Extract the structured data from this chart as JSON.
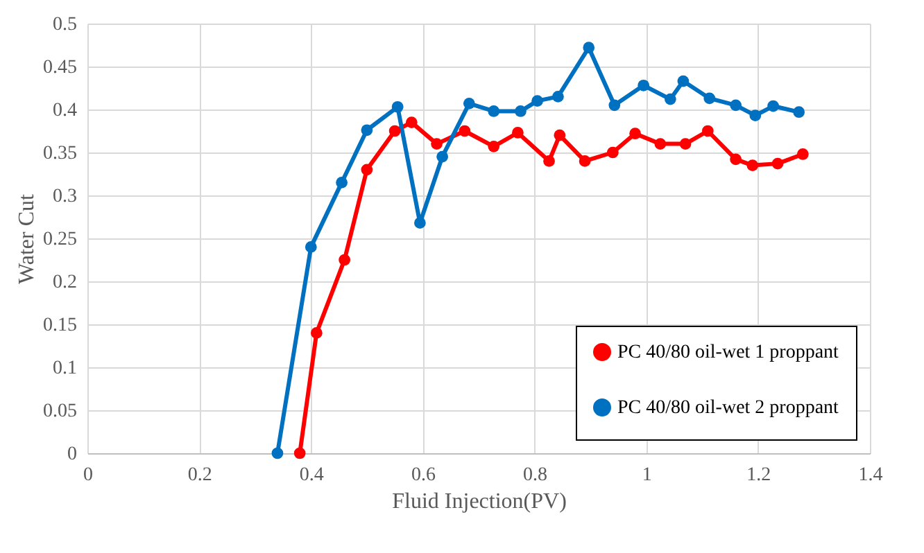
{
  "chart_data": {
    "type": "line",
    "xlabel": "Fluid Injection(PV)",
    "ylabel": "Water Cut",
    "xlim": [
      0,
      1.4
    ],
    "xticks": [
      0,
      0.2,
      0.4,
      0.6,
      0.8,
      1,
      1.2,
      1.4
    ],
    "ylim": [
      0,
      0.5
    ],
    "yticks": [
      0,
      0.05,
      0.1,
      0.15,
      0.2,
      0.25,
      0.3,
      0.35,
      0.4,
      0.45,
      0.5
    ],
    "grid": true,
    "legend": "bottom right",
    "marker": "circle",
    "line_style": "solid",
    "series": [
      {
        "name": "PC 40/80 oil-wet 1 proppant",
        "color": "#ff0000",
        "x": [
          0.38,
          0.41,
          0.46,
          0.5,
          0.55,
          0.58,
          0.625,
          0.675,
          0.727,
          0.77,
          0.826,
          0.845,
          0.89,
          0.94,
          0.98,
          1.025,
          1.07,
          1.11,
          1.16,
          1.19,
          1.235,
          1.28
        ],
        "values": [
          0,
          0.14,
          0.225,
          0.33,
          0.375,
          0.385,
          0.36,
          0.375,
          0.357,
          0.373,
          0.34,
          0.37,
          0.34,
          0.35,
          0.372,
          0.36,
          0.36,
          0.375,
          0.342,
          0.335,
          0.337,
          0.348
        ]
      },
      {
        "name": "PC 40/80 oil-wet 2 proppant",
        "color": "#0070c0",
        "x": [
          0.34,
          0.4,
          0.455,
          0.5,
          0.555,
          0.595,
          0.635,
          0.683,
          0.727,
          0.775,
          0.805,
          0.842,
          0.897,
          0.943,
          0.995,
          1.043,
          1.066,
          1.113,
          1.16,
          1.195,
          1.227,
          1.273
        ],
        "values": [
          0,
          0.24,
          0.315,
          0.376,
          0.403,
          0.268,
          0.345,
          0.407,
          0.398,
          0.398,
          0.41,
          0.415,
          0.472,
          0.405,
          0.428,
          0.412,
          0.433,
          0.413,
          0.405,
          0.393,
          0.404,
          0.397
        ]
      }
    ]
  }
}
